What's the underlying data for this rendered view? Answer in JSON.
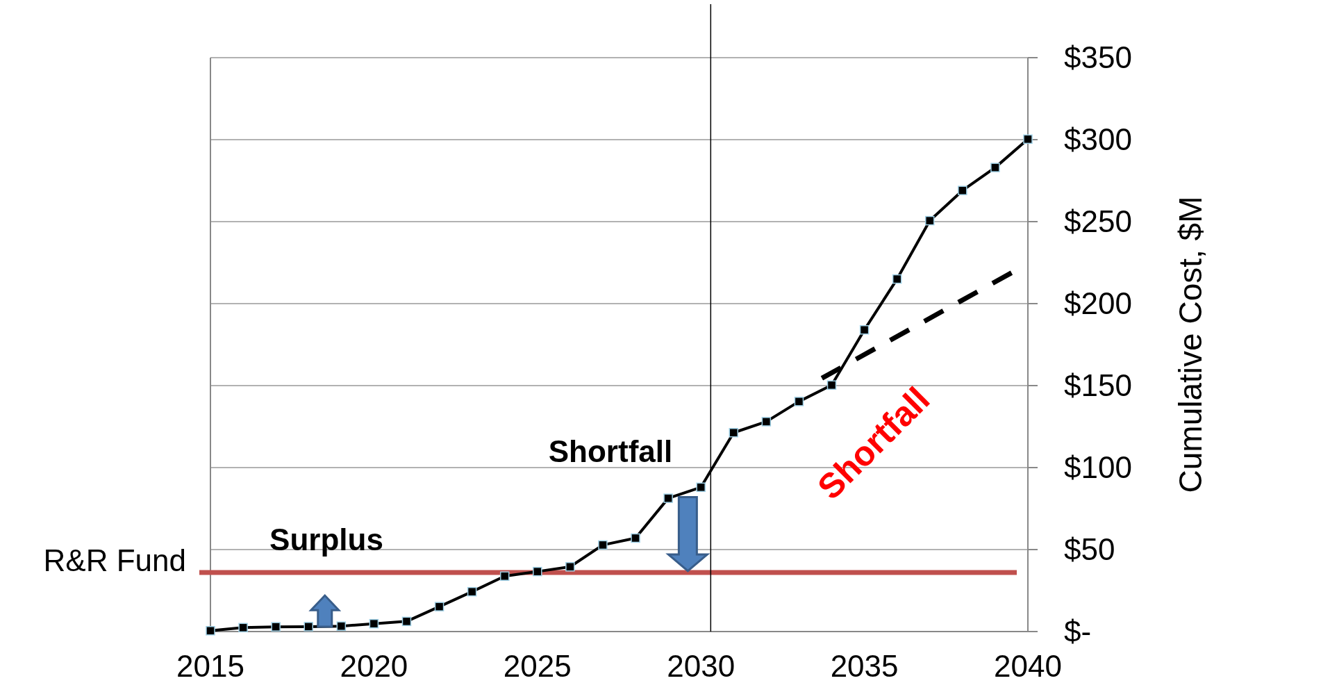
{
  "chart_data": {
    "type": "line",
    "ylabel": "Cumulative Cost, $M",
    "x": [
      2015,
      2016,
      2017,
      2018,
      2019,
      2020,
      2021,
      2022,
      2023,
      2024,
      2025,
      2026,
      2027,
      2028,
      2029,
      2030,
      2031,
      2032,
      2033,
      2034,
      2035,
      2036,
      2037,
      2038,
      2039,
      2040
    ],
    "series": [
      {
        "color": "#000000",
        "values": [
          0.5,
          2.4,
          2.9,
          3,
          3.3,
          4.8,
          6.2,
          15.2,
          24.3,
          33.8,
          36.6,
          39.5,
          52.8,
          57,
          81.3,
          88,
          121.3,
          128,
          140.3,
          150.3,
          184,
          215,
          250.6,
          269,
          283,
          300.3
        ]
      },
      {
        "type": "line",
        "color": "#000000",
        "x": [
          2033.7,
          2039.5
        ],
        "values": [
          154.5,
          218.8
        ],
        "marker": "none",
        "line_style": "dashed"
      }
    ],
    "xlim": [
      2015,
      2040
    ],
    "xticks": [
      2015,
      2020,
      2025,
      2030,
      2035,
      2040
    ],
    "ylim": [
      0,
      350
    ],
    "yticks": [
      {
        "value": 0,
        "label": "$-"
      },
      {
        "value": 50,
        "label": "$50"
      },
      {
        "value": 100,
        "label": "$100"
      },
      {
        "value": 150,
        "label": "$150"
      },
      {
        "value": 200,
        "label": "$200"
      },
      {
        "value": 250,
        "label": "$250"
      },
      {
        "value": 300,
        "label": "$300"
      },
      {
        "value": 350,
        "label": "$350"
      }
    ],
    "grid": "y",
    "marker": "square",
    "line_style": "solid",
    "ref_lines": [
      {
        "axis": "y",
        "value": 36,
        "label": "R&R Fund",
        "color": "#c0504d"
      },
      {
        "axis": "x",
        "value": 2030.3,
        "color": "#000000"
      }
    ],
    "annotations": [
      "Surplus",
      "Shortfall",
      "Shortfall"
    ]
  }
}
